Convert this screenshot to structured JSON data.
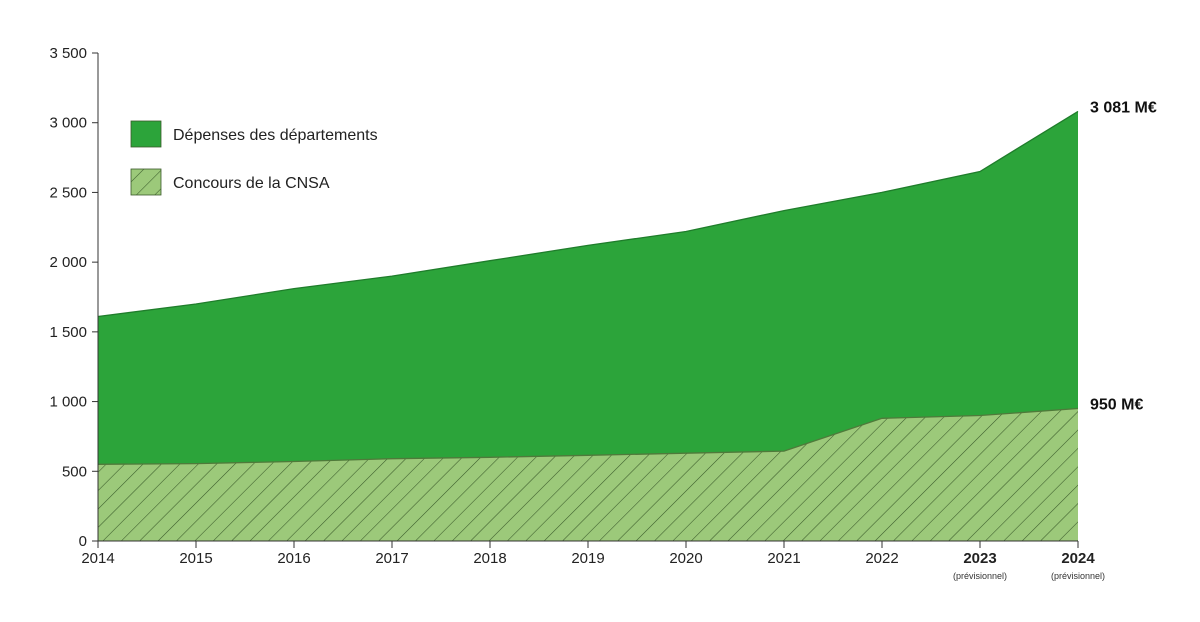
{
  "chart_data": {
    "type": "area",
    "x": [
      "2014",
      "2015",
      "2016",
      "2017",
      "2018",
      "2019",
      "2020",
      "2021",
      "2022",
      "2023",
      "2024"
    ],
    "x_notes": [
      "",
      "",
      "",
      "",
      "",
      "",
      "",
      "",
      "",
      "(prévisionnel)",
      "(prévisionnel)"
    ],
    "x_bold": [
      false,
      false,
      false,
      false,
      false,
      false,
      false,
      false,
      false,
      true,
      true
    ],
    "series": [
      {
        "name": "Dépenses des départements",
        "color": "#2ca43a",
        "pattern": "solid",
        "values": [
          1610,
          1700,
          1810,
          1900,
          2010,
          2120,
          2220,
          2370,
          2500,
          2650,
          3081
        ],
        "end_label": "3 081 M€"
      },
      {
        "name": "Concours de la CNSA",
        "color": "#9cc97a",
        "pattern": "hatched",
        "values": [
          550,
          555,
          570,
          590,
          600,
          615,
          630,
          645,
          880,
          900,
          950
        ],
        "end_label": "950 M€"
      }
    ],
    "ylim": [
      0,
      3500
    ],
    "yticks": [
      0,
      500,
      1000,
      1500,
      2000,
      2500,
      3000,
      3500
    ],
    "ytick_labels": [
      "0",
      "500",
      "1 000",
      "1 500",
      "2 000",
      "2 500",
      "3 000",
      "3 500"
    ],
    "title": "",
    "xlabel": "",
    "ylabel": "",
    "grid": false,
    "legend_position": "top-left"
  }
}
